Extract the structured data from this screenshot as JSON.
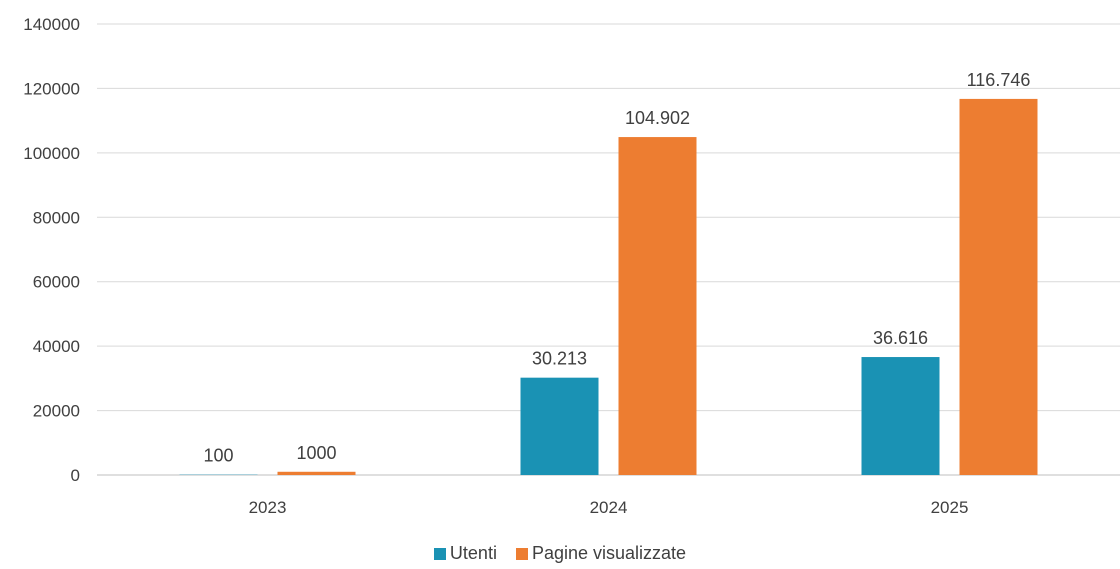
{
  "chart_data": {
    "type": "bar",
    "categories": [
      "2023",
      "2024",
      "2025"
    ],
    "series": [
      {
        "name": "Utenti",
        "values": [
          100,
          30213,
          36616
        ],
        "labels": [
          "100",
          "30.213",
          "36.616"
        ],
        "color": "#1a92b4"
      },
      {
        "name": "Pagine visualizzate",
        "values": [
          1000,
          104902,
          116746
        ],
        "labels": [
          "1000",
          "104.902",
          "116.746"
        ],
        "color": "#ed7d31"
      }
    ],
    "ylim": [
      0,
      140000
    ],
    "yticks": [
      "0",
      "20000",
      "40000",
      "60000",
      "80000",
      "100000",
      "120000",
      "140000"
    ],
    "grid": true,
    "legend_position": "bottom"
  }
}
